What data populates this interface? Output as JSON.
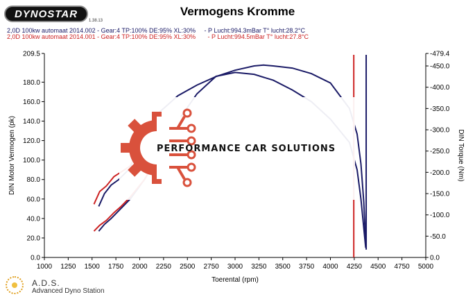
{
  "header": {
    "logo_text": "DYNOSTAR",
    "logo_version": "1.38.13",
    "title": "Vermogens Kromme"
  },
  "runs": [
    {
      "label": "2,0D 100kw automaat 2014.002 - Gear:4 TP:100% DE:95% XL:30%     - P Lucht:994.3mBar T° lucht:28.2°C",
      "color": "#1a1a66"
    },
    {
      "label": "2,0D 100kw automaat 2014.001 - Gear:4 TP:100% DE:95% XL:30%       - P Lucht:994.5mBar T° lucht:27.8°C",
      "color": "#cc2222"
    }
  ],
  "watermark": {
    "text": "PERFORMANCE CAR SOLUTIONS",
    "color": "#d9513c"
  },
  "footer": {
    "name": "A.D.S.",
    "subtitle": "Advanced Dyno Station"
  },
  "chart_data": {
    "type": "line",
    "title": "Vermogens Kromme",
    "xlabel": "Toerental (rpm)",
    "ylabel": "DIN Motor Vermogen (pk)",
    "y2label": "DIN Torque (Nm)",
    "xlim": [
      1000,
      5000
    ],
    "ylim": [
      0,
      209.5
    ],
    "y2lim": [
      0,
      479.4
    ],
    "x_ticks": [
      "1000",
      "1250",
      "1500",
      "1750",
      "2000",
      "2250",
      "2500",
      "2750",
      "3000",
      "3250",
      "3500",
      "3750",
      "4000",
      "4250",
      "4500",
      "4750",
      "5000"
    ],
    "y_ticks": [
      "0.0",
      "20.0",
      "40.0",
      "60.0",
      "80.0",
      "100.0",
      "120.0",
      "140.0",
      "160.0",
      "180.0",
      "209.5"
    ],
    "y2_ticks": [
      "0.0",
      "-50.0",
      "-100.0",
      "-150.0",
      "-200.0",
      "-250.0",
      "-300.0",
      "-350.0",
      "-400.0",
      "-450.0",
      "-479.4"
    ],
    "grid": false,
    "series": [
      {
        "color": "#1a1a66",
        "kind": "power",
        "x": [
          1570,
          1630,
          1700,
          1780,
          1900,
          2050,
          2200,
          2400,
          2600,
          2800,
          3000,
          3200,
          3400,
          3600,
          3800,
          4000,
          4200,
          4280,
          4320,
          4350,
          4370
        ],
        "values": [
          27,
          34,
          40,
          48,
          60,
          80,
          105,
          140,
          168,
          186,
          190,
          188,
          182,
          172,
          160,
          142,
          118,
          90,
          60,
          30,
          10
        ]
      },
      {
        "color": "#1a1a66",
        "kind": "torque",
        "x": [
          1570,
          1630,
          1700,
          1780,
          1900,
          2050,
          2200,
          2400,
          2600,
          2800,
          3000,
          3200,
          3300,
          3400,
          3600,
          3800,
          4000,
          4200,
          4280,
          4320,
          4350,
          4370
        ],
        "values": [
          120,
          150,
          170,
          183,
          210,
          300,
          340,
          380,
          405,
          425,
          440,
          450,
          452,
          450,
          445,
          432,
          410,
          350,
          290,
          220,
          130,
          30
        ]
      },
      {
        "color": "#cc2222",
        "kind": "power",
        "x": [
          1520,
          1580,
          1650,
          1730,
          1800,
          1900,
          2050,
          2200,
          2400
        ],
        "values": [
          27,
          33,
          38,
          46,
          52,
          62,
          80,
          105,
          140
        ]
      },
      {
        "color": "#cc2222",
        "kind": "torque",
        "x": [
          1520,
          1580,
          1650,
          1730,
          1800,
          1900,
          2050,
          2200
        ],
        "values": [
          125,
          155,
          168,
          190,
          200,
          215,
          280,
          320
        ]
      }
    ]
  }
}
